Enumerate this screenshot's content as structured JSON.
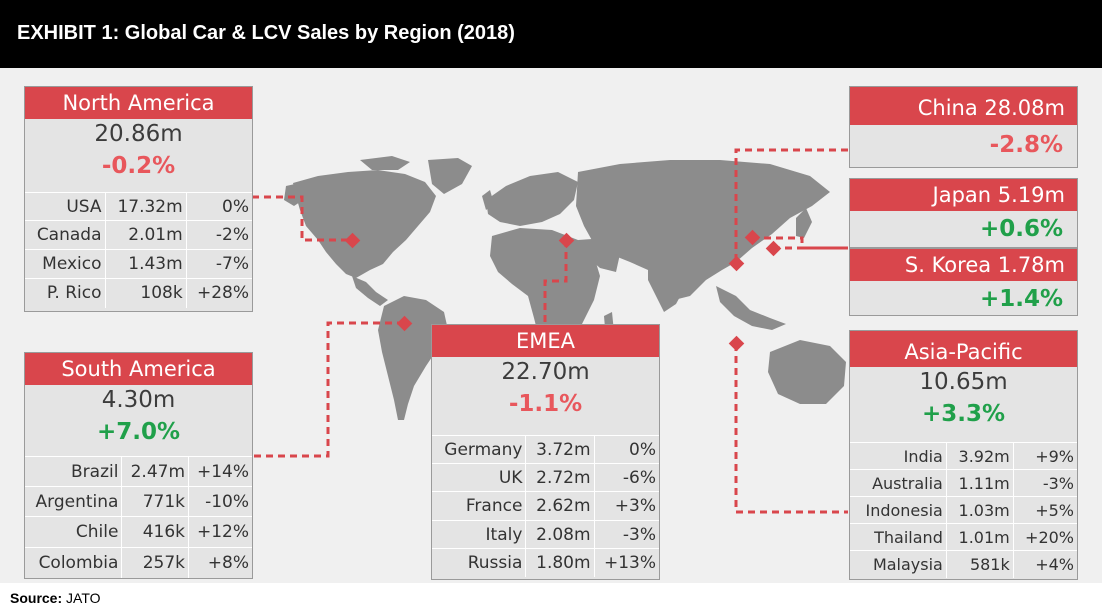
{
  "header": {
    "title": "EXHIBIT 1: Global Car & LCV Sales by Region (2018)"
  },
  "source": {
    "label": "Source:",
    "value": "JATO"
  },
  "colors": {
    "accent": "#d9464c",
    "negative": "#e8575c",
    "positive": "#20a04a",
    "map": "#8c8c8c"
  },
  "chart_data": {
    "type": "table",
    "title": "EXHIBIT 1: Global Car & LCV Sales by Region (2018)",
    "regions": {
      "north_america": {
        "name": "North America",
        "total": "20.86m",
        "change": "-0.2%",
        "rows": [
          {
            "name": "USA",
            "value": "17.32m",
            "change": "0%"
          },
          {
            "name": "Canada",
            "value": "2.01m",
            "change": "-2%"
          },
          {
            "name": "Mexico",
            "value": "1.43m",
            "change": "-7%"
          },
          {
            "name": "P. Rico",
            "value": "108k",
            "change": "+28%"
          }
        ]
      },
      "south_america": {
        "name": "South America",
        "total": "4.30m",
        "change": "+7.0%",
        "rows": [
          {
            "name": "Brazil",
            "value": "2.47m",
            "change": "+14%"
          },
          {
            "name": "Argentina",
            "value": "771k",
            "change": "-10%"
          },
          {
            "name": "Chile",
            "value": "416k",
            "change": "+12%"
          },
          {
            "name": "Colombia",
            "value": "257k",
            "change": "+8%"
          }
        ]
      },
      "emea": {
        "name": "EMEA",
        "total": "22.70m",
        "change": "-1.1%",
        "rows": [
          {
            "name": "Germany",
            "value": "3.72m",
            "change": "0%"
          },
          {
            "name": "UK",
            "value": "2.72m",
            "change": "-6%"
          },
          {
            "name": "France",
            "value": "2.62m",
            "change": "+3%"
          },
          {
            "name": "Italy",
            "value": "2.08m",
            "change": "-3%"
          },
          {
            "name": "Russia",
            "value": "1.80m",
            "change": "+13%"
          }
        ]
      },
      "china": {
        "name": "China 28.08m",
        "change": "-2.8%"
      },
      "japan": {
        "name": "Japan 5.19m",
        "change": "+0.6%"
      },
      "south_korea": {
        "name": "S. Korea 1.78m",
        "change": "+1.4%"
      },
      "asia_pacific": {
        "name": "Asia-Pacific",
        "total": "10.65m",
        "change": "+3.3%",
        "rows": [
          {
            "name": "India",
            "value": "3.92m",
            "change": "+9%"
          },
          {
            "name": "Australia",
            "value": "1.11m",
            "change": "-3%"
          },
          {
            "name": "Indonesia",
            "value": "1.03m",
            "change": "+5%"
          },
          {
            "name": "Thailand",
            "value": "1.01m",
            "change": "+20%"
          },
          {
            "name": "Malaysia",
            "value": "581k",
            "change": "+4%"
          }
        ]
      }
    }
  }
}
